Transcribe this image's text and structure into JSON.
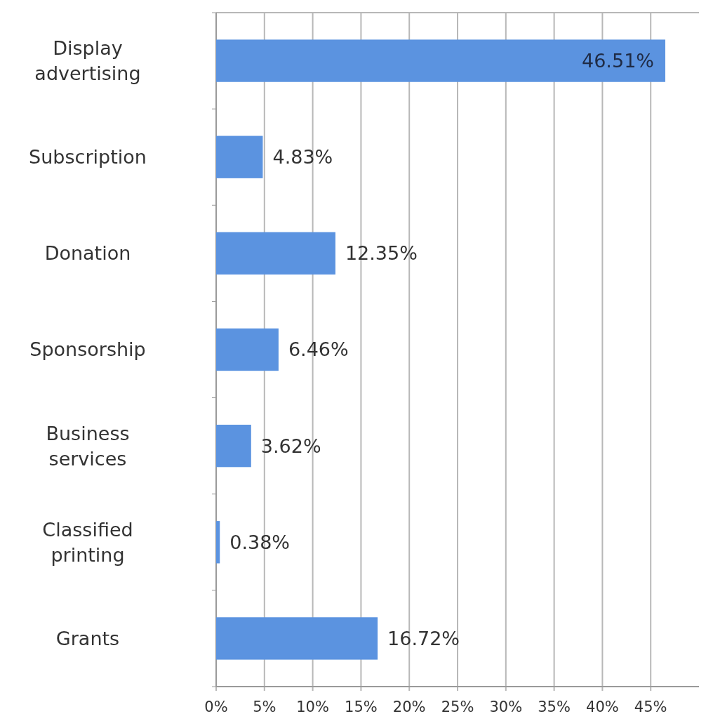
{
  "chart_data": {
    "type": "bar",
    "orientation": "horizontal",
    "categories": [
      "Display advertising",
      "Subscription",
      "Donation",
      "Sponsorship",
      "Business services",
      "Classified printing",
      "Grants"
    ],
    "values": [
      46.51,
      4.83,
      12.35,
      6.46,
      3.62,
      0.38,
      16.72
    ],
    "value_labels": [
      "46.51%",
      "4.83%",
      "12.35%",
      "6.46%",
      "3.62%",
      "0.38%",
      "16.72%"
    ],
    "color": "#5b93e0",
    "xlim": [
      0,
      50
    ],
    "xticks": [
      {
        "value": 0,
        "label": "0%"
      },
      {
        "value": 5,
        "label": "5%"
      },
      {
        "value": 10,
        "label": "10%"
      },
      {
        "value": 15,
        "label": "15%"
      },
      {
        "value": 20,
        "label": "20%"
      },
      {
        "value": 25,
        "label": "25%"
      },
      {
        "value": 30,
        "label": "30%"
      },
      {
        "value": 35,
        "label": "35%"
      },
      {
        "value": 40,
        "label": "40%"
      },
      {
        "value": 45,
        "label": "45%"
      }
    ],
    "grid": "x"
  }
}
